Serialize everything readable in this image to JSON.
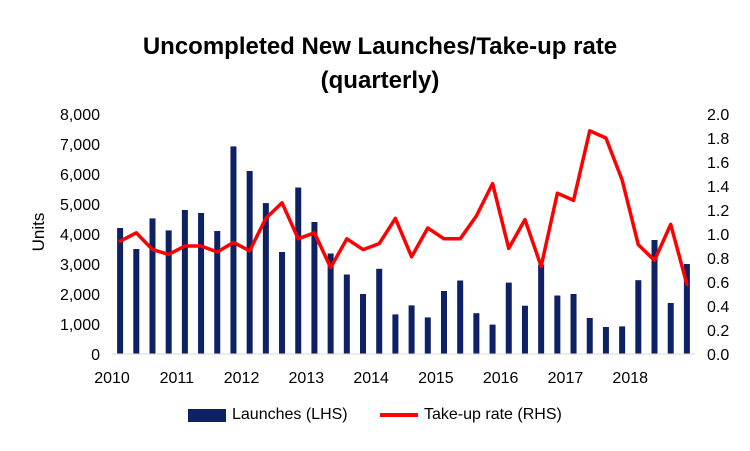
{
  "chart_data": {
    "type": "bar",
    "title_lines": [
      "Uncompleted New Launches/Take-up rate",
      "(quarterly)"
    ],
    "ylabel": "Units",
    "ylim": [
      0,
      8000
    ],
    "y2lim": [
      0,
      2.0
    ],
    "yticks": [
      "0",
      "1,000",
      "2,000",
      "3,000",
      "4,000",
      "5,000",
      "6,000",
      "7,000",
      "8,000"
    ],
    "y2ticks": [
      "0.0",
      "0.2",
      "0.4",
      "0.6",
      "0.8",
      "1.0",
      "1.2",
      "1.4",
      "1.6",
      "1.8",
      "2.0"
    ],
    "xticks": [
      "2010",
      "2011",
      "2012",
      "2013",
      "2014",
      "2015",
      "2016",
      "2017",
      "2018"
    ],
    "quarters": [
      "2010Q1",
      "2010Q2",
      "2010Q3",
      "2010Q4",
      "2011Q1",
      "2011Q2",
      "2011Q3",
      "2011Q4",
      "2012Q1",
      "2012Q2",
      "2012Q3",
      "2012Q4",
      "2013Q1",
      "2013Q2",
      "2013Q3",
      "2013Q4",
      "2014Q1",
      "2014Q2",
      "2014Q3",
      "2014Q4",
      "2015Q1",
      "2015Q2",
      "2015Q3",
      "2015Q4",
      "2016Q1",
      "2016Q2",
      "2016Q3",
      "2016Q4",
      "2017Q1",
      "2017Q2",
      "2017Q3",
      "2017Q4",
      "2018Q1",
      "2018Q2",
      "2018Q3",
      "2018Q4"
    ],
    "grid": false,
    "legend_position": "bottom",
    "series": [
      {
        "name": "Launches (LHS)",
        "type": "bar",
        "axis": "left",
        "color": "#0d2164",
        "values": [
          4200,
          3500,
          4520,
          4120,
          4800,
          4700,
          4100,
          6920,
          6100,
          5030,
          3400,
          5550,
          4400,
          3350,
          2650,
          2000,
          2840,
          1320,
          1620,
          1220,
          2100,
          2450,
          1360,
          980,
          2380,
          1610,
          2980,
          1950,
          2000,
          1200,
          900,
          920,
          2460,
          3800,
          1700,
          3000
        ]
      },
      {
        "name": "Take-up rate (RHS)",
        "type": "line",
        "axis": "right",
        "color": "#ff0000",
        "values": [
          0.94,
          1.01,
          0.87,
          0.83,
          0.9,
          0.9,
          0.85,
          0.93,
          0.86,
          1.13,
          1.26,
          0.96,
          1.01,
          0.72,
          0.96,
          0.87,
          0.92,
          1.13,
          0.81,
          1.05,
          0.96,
          0.96,
          1.15,
          1.42,
          0.88,
          1.12,
          0.73,
          1.34,
          1.28,
          1.86,
          1.8,
          1.45,
          0.91,
          0.78,
          1.08,
          0.58
        ]
      }
    ]
  }
}
